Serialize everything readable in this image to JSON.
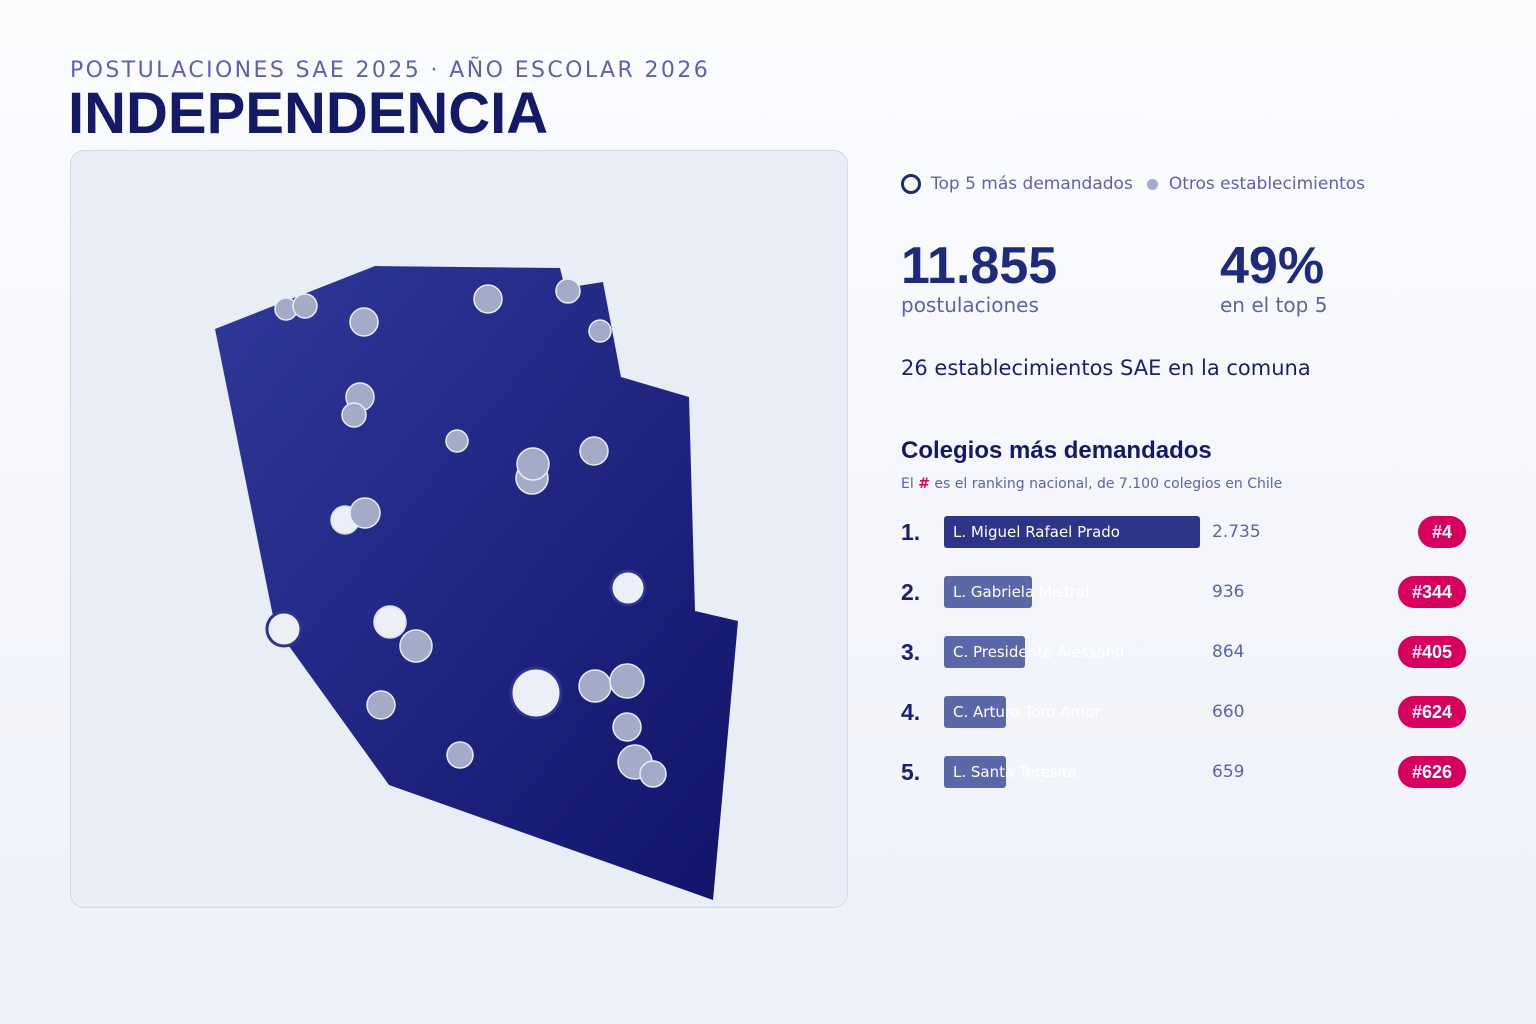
{
  "header": {
    "eyebrow": "POSTULACIONES SAE 2025 · AÑO ESCOLAR 2026",
    "title": "INDEPENDENCIA"
  },
  "legend": {
    "top5_label": "Top 5 más demandados",
    "others_label": "Otros establecimientos"
  },
  "stats": {
    "total_value": "11.855",
    "total_label": "postulaciones",
    "top5_share_value": "49%",
    "top5_share_label": "en el top 5",
    "summary": "26 establecimientos SAE en la comuna"
  },
  "ranking": {
    "title": "Colegios más demandados",
    "note_prefix": "El",
    "note_hash": "#",
    "note_suffix": "es el ranking nacional, de 7.100 colegios en Chile",
    "rows": [
      {
        "pos": "1.",
        "name": "L. Miguel Rafael Prado",
        "count": "2.735",
        "applications": 2735,
        "rank": "#4",
        "color": "#2e3488"
      },
      {
        "pos": "2.",
        "name": "L. Gabriela Mistral",
        "count": "936",
        "applications": 936,
        "rank": "#344",
        "color": "#5b68a8"
      },
      {
        "pos": "3.",
        "name": "C. Presidente Alessand",
        "count": "864",
        "applications": 864,
        "rank": "#405",
        "color": "#5b68a8"
      },
      {
        "pos": "4.",
        "name": "C. Arturo Toro Amor",
        "count": "660",
        "applications": 660,
        "rank": "#624",
        "color": "#5b68a8"
      },
      {
        "pos": "5.",
        "name": "L. Santa Teresita",
        "count": "659",
        "applications": 659,
        "rank": "#626",
        "color": "#5b68a8"
      }
    ]
  },
  "colors": {
    "navy": "#1e2a7a",
    "accent": "#d6005f",
    "map_fill_top": "#2d3490",
    "map_fill_bottom": "#14186a",
    "dot_other": "#a3abc9",
    "dot_top": "#eceff8"
  }
}
